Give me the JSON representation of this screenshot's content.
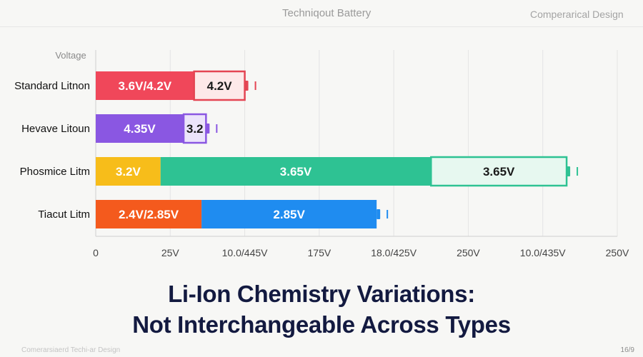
{
  "header": {
    "left_text": "Techniqout Battery",
    "right_text": "Comperarical Design"
  },
  "chart_data": {
    "type": "bar",
    "stacked": true,
    "orientation": "horizontal",
    "ylabel": "Voltage",
    "categories": [
      "Standard Litnon",
      "Hevave Litoun",
      "Phosmice Litm",
      "Tiacut Litm"
    ],
    "x_tick_labels": [
      "0",
      "25V",
      "10.0/445V",
      "175V",
      "18.0/425V",
      "250V",
      "10.0/435V",
      "250V"
    ],
    "xlim": [
      0,
      7
    ],
    "grid": true,
    "bars": [
      {
        "category": "Standard Litnon",
        "segments": [
          {
            "start": 0,
            "end": 1.32,
            "label": "3.6V/4.2V",
            "color": "#f0475a",
            "text_color": "#ffffff"
          },
          {
            "start": 1.32,
            "end": 2.0,
            "label": "4.2V",
            "color": "#fde9e9",
            "text_color": "#1a1a1a"
          }
        ],
        "terminal_color": "#e44553"
      },
      {
        "category": "Hevave Litoun",
        "segments": [
          {
            "start": 0,
            "end": 1.18,
            "label": "4.35V",
            "color": "#8a57e2",
            "text_color": "#ffffff"
          },
          {
            "start": 1.18,
            "end": 1.48,
            "label": "3.2",
            "color": "#ece4fb",
            "text_color": "#1a1a1a"
          }
        ],
        "terminal_color": "#8a57e2"
      },
      {
        "category": "Phosmice Litm",
        "segments": [
          {
            "start": 0,
            "end": 0.87,
            "label": "3.2V",
            "color": "#f7bd1a",
            "text_color": "#ffffff"
          },
          {
            "start": 0.87,
            "end": 4.5,
            "label": "3.65V",
            "color": "#2ec293",
            "text_color": "#ffffff"
          },
          {
            "start": 4.5,
            "end": 6.32,
            "label": "3.65V",
            "color": "#e7f8f0",
            "text_color": "#1a1a1a"
          }
        ],
        "terminal_color": "#2ec293"
      },
      {
        "category": "Tiacut Litm",
        "segments": [
          {
            "start": 0,
            "end": 1.42,
            "label": "2.4V/2.85V",
            "color": "#f45a1d",
            "text_color": "#ffffff"
          },
          {
            "start": 1.42,
            "end": 3.77,
            "label": "2.85V",
            "color": "#1f8cf0",
            "text_color": "#ffffff"
          }
        ],
        "terminal_color": "#1f8cf0"
      }
    ]
  },
  "title": {
    "line1": "Li-Ion Chemistry Variations:",
    "line2": "Not Interchangeable Across Types"
  },
  "footer": {
    "left_text": "Comerarsiaerd Techi-ar Design",
    "page": "16/9"
  }
}
